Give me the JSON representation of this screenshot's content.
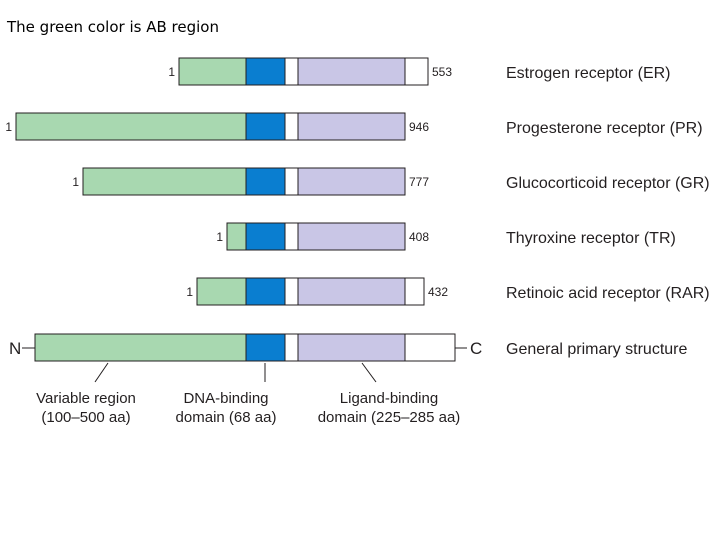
{
  "note": "The green color is AB region",
  "colors": {
    "variable_region": "#a8d8b0",
    "dna_binding": "#0a7ed0",
    "hinge": "#ffffff",
    "ligand_binding": "#c9c6e6",
    "c_terminal": "#ffffff"
  },
  "receptors": [
    {
      "start_label": "1",
      "length_label": "553",
      "name": "Estrogen receptor (ER)"
    },
    {
      "start_label": "1",
      "length_label": "946",
      "name": "Progesterone receptor (PR)"
    },
    {
      "start_label": "1",
      "length_label": "777",
      "name": "Glucocorticoid receptor (GR)"
    },
    {
      "start_label": "1",
      "length_label": "408",
      "name": "Thyroxine receptor (TR)"
    },
    {
      "start_label": "1",
      "length_label": "432",
      "name": "Retinoic acid receptor (RAR)"
    }
  ],
  "general": {
    "n_label": "N",
    "c_label": "C",
    "name": "General primary structure"
  },
  "captions": {
    "variable": [
      "Variable region",
      "(100–500 aa)"
    ],
    "dna": [
      "DNA-binding",
      "domain (68 aa)"
    ],
    "ligand": [
      "Ligand-binding",
      "domain (225–285 aa)"
    ]
  }
}
